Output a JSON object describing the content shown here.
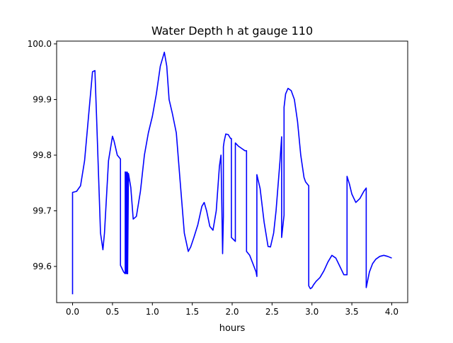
{
  "chart_data": {
    "type": "line",
    "title": "Water Depth h at gauge 110",
    "xlabel": "hours",
    "ylabel": "",
    "xlim": [
      -0.2,
      4.2
    ],
    "ylim": [
      99.535,
      100.005
    ],
    "xticks": [
      0.0,
      0.5,
      1.0,
      1.5,
      2.0,
      2.5,
      3.0,
      3.5,
      4.0
    ],
    "xtick_labels": [
      "0.0",
      "0.5",
      "1.0",
      "1.5",
      "2.0",
      "2.5",
      "3.0",
      "3.5",
      "4.0"
    ],
    "yticks": [
      99.6,
      99.7,
      99.8,
      99.9,
      100.0
    ],
    "ytick_labels": [
      "99.6",
      "99.7",
      "99.8",
      "99.9",
      "100.0"
    ],
    "grid": false,
    "legend": "none",
    "series": [
      {
        "color": "#0000ff",
        "x": [
          0.0,
          0.0,
          0.05,
          0.1,
          0.15,
          0.2,
          0.25,
          0.28,
          0.3,
          0.35,
          0.38,
          0.4,
          0.45,
          0.5,
          0.52,
          0.56,
          0.6,
          0.6,
          0.64,
          0.66,
          0.66,
          0.67,
          0.67,
          0.68,
          0.68,
          0.69,
          0.69,
          0.7,
          0.73,
          0.76,
          0.8,
          0.85,
          0.9,
          0.95,
          1.0,
          1.05,
          1.1,
          1.15,
          1.18,
          1.21,
          1.25,
          1.3,
          1.35,
          1.4,
          1.45,
          1.48,
          1.52,
          1.57,
          1.62,
          1.65,
          1.68,
          1.72,
          1.76,
          1.8,
          1.84,
          1.86,
          1.88,
          1.89,
          1.89,
          1.9,
          1.92,
          1.95,
          1.98,
          1.99,
          1.99,
          2.04,
          2.04,
          2.08,
          2.12,
          2.16,
          2.18,
          2.18,
          2.22,
          2.26,
          2.3,
          2.31,
          2.31,
          2.35,
          2.4,
          2.45,
          2.48,
          2.52,
          2.55,
          2.6,
          2.62,
          2.62,
          2.65,
          2.65,
          2.67,
          2.7,
          2.74,
          2.78,
          2.82,
          2.86,
          2.9,
          2.92,
          2.96,
          2.96,
          2.98,
          3.0,
          3.02,
          3.05,
          3.1,
          3.15,
          3.2,
          3.25,
          3.3,
          3.35,
          3.4,
          3.44,
          3.44,
          3.47,
          3.5,
          3.55,
          3.6,
          3.65,
          3.68,
          3.68,
          3.72,
          3.76,
          3.8,
          3.85,
          3.9,
          3.95,
          4.0
        ],
        "y": [
          99.55,
          99.733,
          99.735,
          99.745,
          99.79,
          99.87,
          99.95,
          99.952,
          99.87,
          99.66,
          99.63,
          99.66,
          99.79,
          99.834,
          99.825,
          99.8,
          99.793,
          99.602,
          99.59,
          99.587,
          99.77,
          99.768,
          99.588,
          99.587,
          99.77,
          99.768,
          99.587,
          99.767,
          99.742,
          99.685,
          99.69,
          99.735,
          99.8,
          99.84,
          99.87,
          99.91,
          99.96,
          99.985,
          99.96,
          99.9,
          99.875,
          99.84,
          99.75,
          99.66,
          99.627,
          99.635,
          99.652,
          99.675,
          99.708,
          99.715,
          99.7,
          99.672,
          99.665,
          99.7,
          99.78,
          99.8,
          99.623,
          99.69,
          99.815,
          99.825,
          99.838,
          99.837,
          99.83,
          99.83,
          99.652,
          99.645,
          99.822,
          99.816,
          99.812,
          99.808,
          99.808,
          99.627,
          99.62,
          99.605,
          99.59,
          99.582,
          99.765,
          99.74,
          99.68,
          99.636,
          99.635,
          99.66,
          99.7,
          99.79,
          99.833,
          99.652,
          99.692,
          99.886,
          99.91,
          99.92,
          99.916,
          99.9,
          99.86,
          99.8,
          99.76,
          99.752,
          99.745,
          99.565,
          99.56,
          99.562,
          99.567,
          99.573,
          99.58,
          99.592,
          99.608,
          99.62,
          99.615,
          99.6,
          99.585,
          99.585,
          99.762,
          99.748,
          99.73,
          99.715,
          99.722,
          99.735,
          99.741,
          99.562,
          99.59,
          99.605,
          99.613,
          99.618,
          99.62,
          99.618,
          99.615
        ]
      }
    ]
  }
}
